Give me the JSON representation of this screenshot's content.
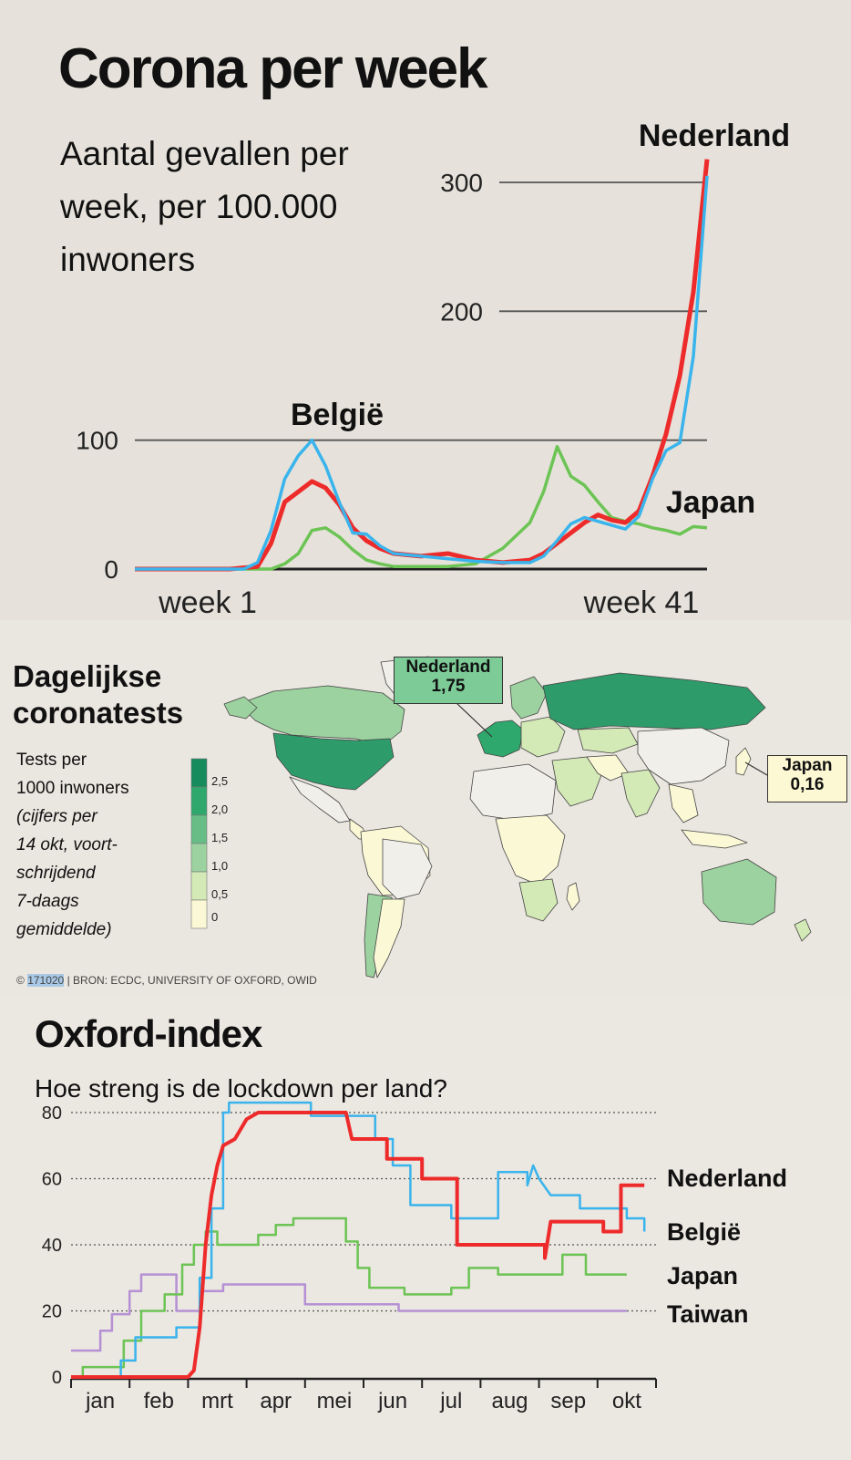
{
  "chart_data": [
    {
      "type": "line",
      "title": "Corona per week",
      "subtitle": "Aantal gevallen per week, per 100.000 inwoners",
      "x_tick_labels": [
        "week 1",
        "week 41"
      ],
      "xlim": [
        1,
        42
      ],
      "ylim": [
        0,
        310
      ],
      "y_ticks": [
        0,
        100,
        200,
        300
      ],
      "grid": true,
      "series": [
        {
          "name": "Nederland",
          "color": "#ee2b2b",
          "points": [
            [
              1,
              0
            ],
            [
              8,
              0
            ],
            [
              10,
              2
            ],
            [
              11,
              20
            ],
            [
              12,
              52
            ],
            [
              13,
              60
            ],
            [
              14,
              68
            ],
            [
              15,
              63
            ],
            [
              16,
              50
            ],
            [
              17,
              32
            ],
            [
              18,
              22
            ],
            [
              19,
              16
            ],
            [
              20,
              12
            ],
            [
              22,
              10
            ],
            [
              24,
              12
            ],
            [
              26,
              7
            ],
            [
              28,
              5
            ],
            [
              30,
              7
            ],
            [
              31,
              12
            ],
            [
              32,
              20
            ],
            [
              33,
              28
            ],
            [
              34,
              36
            ],
            [
              35,
              42
            ],
            [
              36,
              38
            ],
            [
              37,
              36
            ],
            [
              38,
              45
            ],
            [
              39,
              72
            ],
            [
              40,
              105
            ],
            [
              41,
              150
            ],
            [
              42,
              215
            ],
            [
              43,
              318
            ]
          ]
        },
        {
          "name": "België",
          "color": "#3ab4ec",
          "points": [
            [
              1,
              0
            ],
            [
              9,
              0
            ],
            [
              10,
              5
            ],
            [
              11,
              30
            ],
            [
              12,
              70
            ],
            [
              13,
              88
            ],
            [
              14,
              100
            ],
            [
              15,
              80
            ],
            [
              16,
              52
            ],
            [
              17,
              28
            ],
            [
              18,
              27
            ],
            [
              19,
              18
            ],
            [
              20,
              12
            ],
            [
              22,
              10
            ],
            [
              24,
              8
            ],
            [
              26,
              6
            ],
            [
              28,
              5
            ],
            [
              30,
              5
            ],
            [
              31,
              10
            ],
            [
              32,
              22
            ],
            [
              33,
              35
            ],
            [
              34,
              40
            ],
            [
              35,
              37
            ],
            [
              36,
              34
            ],
            [
              37,
              31
            ],
            [
              38,
              41
            ],
            [
              39,
              70
            ],
            [
              40,
              92
            ],
            [
              41,
              98
            ],
            [
              42,
              165
            ],
            [
              43,
              305
            ]
          ]
        },
        {
          "name": "Japan",
          "color": "#6cc454",
          "points": [
            [
              1,
              0
            ],
            [
              11,
              0
            ],
            [
              12,
              4
            ],
            [
              13,
              12
            ],
            [
              14,
              30
            ],
            [
              15,
              32
            ],
            [
              16,
              25
            ],
            [
              17,
              15
            ],
            [
              18,
              7
            ],
            [
              19,
              4
            ],
            [
              20,
              2
            ],
            [
              24,
              2
            ],
            [
              26,
              4
            ],
            [
              28,
              16
            ],
            [
              30,
              36
            ],
            [
              31,
              60
            ],
            [
              32,
              95
            ],
            [
              33,
              72
            ],
            [
              34,
              65
            ],
            [
              35,
              52
            ],
            [
              36,
              40
            ],
            [
              37,
              37
            ],
            [
              38,
              35
            ],
            [
              39,
              32
            ],
            [
              40,
              30
            ],
            [
              41,
              27
            ],
            [
              42,
              33
            ],
            [
              43,
              32
            ]
          ]
        }
      ],
      "label_belgie": "België",
      "label_nederland": "Nederland",
      "label_japan": "Japan"
    },
    {
      "type": "table",
      "map": true,
      "title_line1": "Dagelijkse",
      "title_line2": "coronatests",
      "legend_text": [
        "Tests per",
        "1000 inwoners",
        "(cijfers per",
        "14 okt, voort-",
        "schrijdend",
        "7-daags",
        "gemiddelde)"
      ],
      "legend_scale": [
        "2,5",
        "2,0",
        "1,5",
        "1,0",
        "0,5",
        "0"
      ],
      "legend_colors": [
        "#168b5c",
        "#2ea86c",
        "#66be86",
        "#9cd29f",
        "#d3e9b6",
        "#fbf8d6"
      ],
      "callouts": [
        {
          "country": "Nederland",
          "value": "1,75",
          "color": "#7dcb97"
        },
        {
          "country": "Japan",
          "value": "0,16",
          "color": "#fcf8d3"
        }
      ],
      "source_id": "171020",
      "source_text": "BRON: ECDC, UNIVERSITY OF OXFORD, OWID",
      "copyright": "©"
    },
    {
      "type": "line",
      "title": "Oxford-index",
      "subtitle": "Hoe streng is de lockdown per land?",
      "x_tick_labels": [
        "jan",
        "feb",
        "mrt",
        "apr",
        "mei",
        "jun",
        "jul",
        "aug",
        "sep",
        "okt"
      ],
      "xlim": [
        0,
        10
      ],
      "ylim": [
        0,
        82
      ],
      "y_ticks": [
        0,
        20,
        40,
        60,
        80
      ],
      "series": [
        {
          "name": "Taiwan",
          "color": "#b590d4",
          "points": [
            [
              0,
              8
            ],
            [
              0.5,
              8
            ],
            [
              0.5,
              14
            ],
            [
              0.7,
              14
            ],
            [
              0.7,
              19
            ],
            [
              1.0,
              19
            ],
            [
              1.0,
              26
            ],
            [
              1.2,
              26
            ],
            [
              1.2,
              31
            ],
            [
              1.8,
              31
            ],
            [
              1.8,
              20
            ],
            [
              2.2,
              20
            ],
            [
              2.2,
              26
            ],
            [
              2.6,
              26
            ],
            [
              2.6,
              28
            ],
            [
              4.0,
              28
            ],
            [
              4.0,
              22
            ],
            [
              5.6,
              22
            ],
            [
              5.6,
              20
            ],
            [
              9.5,
              20
            ]
          ]
        },
        {
          "name": "Japan",
          "color": "#6cc454",
          "points": [
            [
              0,
              0
            ],
            [
              0.2,
              0
            ],
            [
              0.2,
              3
            ],
            [
              0.9,
              3
            ],
            [
              0.9,
              11
            ],
            [
              1.2,
              11
            ],
            [
              1.2,
              20
            ],
            [
              1.6,
              20
            ],
            [
              1.6,
              25
            ],
            [
              1.9,
              25
            ],
            [
              1.9,
              34
            ],
            [
              2.1,
              34
            ],
            [
              2.1,
              40
            ],
            [
              2.3,
              40
            ],
            [
              2.3,
              44
            ],
            [
              2.5,
              44
            ],
            [
              2.5,
              40
            ],
            [
              3.2,
              40
            ],
            [
              3.2,
              43
            ],
            [
              3.5,
              43
            ],
            [
              3.5,
              46
            ],
            [
              3.8,
              46
            ],
            [
              3.8,
              48
            ],
            [
              4.7,
              48
            ],
            [
              4.7,
              41
            ],
            [
              4.9,
              41
            ],
            [
              4.9,
              33
            ],
            [
              5.1,
              33
            ],
            [
              5.1,
              27
            ],
            [
              5.7,
              27
            ],
            [
              5.7,
              25
            ],
            [
              6.5,
              25
            ],
            [
              6.5,
              27
            ],
            [
              6.8,
              27
            ],
            [
              6.8,
              33
            ],
            [
              7.3,
              33
            ],
            [
              7.3,
              31
            ],
            [
              8.4,
              31
            ],
            [
              8.4,
              37
            ],
            [
              8.8,
              37
            ],
            [
              8.8,
              31
            ],
            [
              9.5,
              31
            ]
          ]
        },
        {
          "name": "België",
          "color": "#3ab4ec",
          "points": [
            [
              0,
              0
            ],
            [
              0.85,
              0
            ],
            [
              0.85,
              5
            ],
            [
              1.1,
              5
            ],
            [
              1.1,
              12
            ],
            [
              1.8,
              12
            ],
            [
              1.8,
              15
            ],
            [
              2.2,
              15
            ],
            [
              2.2,
              30
            ],
            [
              2.4,
              30
            ],
            [
              2.4,
              51
            ],
            [
              2.6,
              51
            ],
            [
              2.6,
              80
            ],
            [
              2.7,
              80
            ],
            [
              2.7,
              83
            ],
            [
              4.1,
              83
            ],
            [
              4.1,
              79
            ],
            [
              5.2,
              79
            ],
            [
              5.2,
              72
            ],
            [
              5.5,
              72
            ],
            [
              5.5,
              64
            ],
            [
              5.8,
              64
            ],
            [
              5.8,
              52
            ],
            [
              6.5,
              52
            ],
            [
              6.5,
              48
            ],
            [
              7.3,
              48
            ],
            [
              7.3,
              62
            ],
            [
              7.8,
              62
            ],
            [
              7.8,
              58
            ],
            [
              7.9,
              64
            ],
            [
              8.0,
              60
            ],
            [
              8.2,
              55
            ],
            [
              8.7,
              55
            ],
            [
              8.7,
              51
            ],
            [
              9.5,
              51
            ],
            [
              9.5,
              48
            ],
            [
              9.8,
              48
            ],
            [
              9.8,
              44
            ]
          ]
        },
        {
          "name": "Nederland",
          "color": "#ee2b2b",
          "points": [
            [
              0,
              0
            ],
            [
              2.0,
              0
            ],
            [
              2.1,
              2
            ],
            [
              2.2,
              15
            ],
            [
              2.3,
              40
            ],
            [
              2.4,
              55
            ],
            [
              2.5,
              64
            ],
            [
              2.6,
              70
            ],
            [
              2.8,
              72
            ],
            [
              3.0,
              78
            ],
            [
              3.2,
              80
            ],
            [
              4.7,
              80
            ],
            [
              4.8,
              72
            ],
            [
              5.4,
              72
            ],
            [
              5.4,
              66
            ],
            [
              6.0,
              66
            ],
            [
              6.0,
              60
            ],
            [
              6.6,
              60
            ],
            [
              6.6,
              40
            ],
            [
              8.1,
              40
            ],
            [
              8.1,
              36
            ],
            [
              8.2,
              47
            ],
            [
              9.1,
              47
            ],
            [
              9.1,
              44
            ],
            [
              9.4,
              44
            ],
            [
              9.4,
              58
            ],
            [
              9.8,
              58
            ]
          ]
        }
      ],
      "right_labels": [
        "Nederland",
        "België",
        "Japan",
        "Taiwan"
      ]
    }
  ]
}
